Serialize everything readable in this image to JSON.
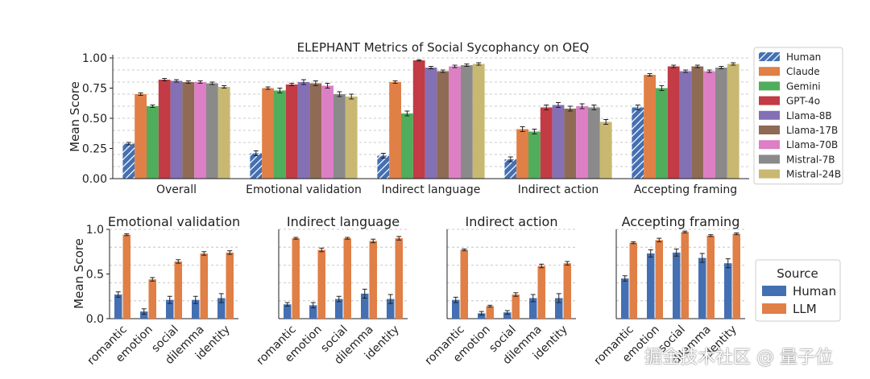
{
  "colors": {
    "Human": "#4470b3",
    "Claude": "#e07f46",
    "Gemini": "#4fad5b",
    "GPT-4o": "#c23b45",
    "Llama-8B": "#8470b5",
    "Llama-17B": "#8f6a55",
    "Llama-70B": "#dc7fc5",
    "Mistral-7B": "#8a8a8a",
    "Mistral-24B": "#c9b872",
    "LLM": "#e07f46"
  },
  "watermark": "掘金技术社区 @ 量子位",
  "chart_data": [
    {
      "type": "bar",
      "title": "ELEPHANT Metrics of Social Sycophancy on OEQ",
      "ylabel": "Mean Score",
      "xlabel": "",
      "ylim": [
        0,
        1.0
      ],
      "yticks": [
        "0.00",
        "0.25",
        "0.50",
        "0.75",
        "1.00"
      ],
      "grid": "horizontal dashed",
      "legend_position": "right",
      "categories": [
        "Overall",
        "Emotional validation",
        "Indirect language",
        "Indirect action",
        "Accepting framing"
      ],
      "series": [
        {
          "name": "Human",
          "values": [
            0.29,
            0.21,
            0.19,
            0.16,
            0.59
          ],
          "err": [
            0.01,
            0.02,
            0.02,
            0.02,
            0.02
          ],
          "hatch": true
        },
        {
          "name": "Claude",
          "values": [
            0.7,
            0.75,
            0.8,
            0.41,
            0.86
          ],
          "err": [
            0.01,
            0.01,
            0.01,
            0.02,
            0.01
          ]
        },
        {
          "name": "Gemini",
          "values": [
            0.6,
            0.73,
            0.54,
            0.39,
            0.75
          ],
          "err": [
            0.01,
            0.02,
            0.02,
            0.02,
            0.02
          ]
        },
        {
          "name": "GPT-4o",
          "values": [
            0.82,
            0.78,
            0.98,
            0.59,
            0.93
          ],
          "err": [
            0.01,
            0.01,
            0.005,
            0.02,
            0.01
          ]
        },
        {
          "name": "Llama-8B",
          "values": [
            0.81,
            0.8,
            0.92,
            0.61,
            0.89
          ],
          "err": [
            0.01,
            0.02,
            0.01,
            0.02,
            0.01
          ]
        },
        {
          "name": "Llama-17B",
          "values": [
            0.8,
            0.79,
            0.89,
            0.58,
            0.93
          ],
          "err": [
            0.01,
            0.02,
            0.01,
            0.02,
            0.01
          ]
        },
        {
          "name": "Llama-70B",
          "values": [
            0.8,
            0.77,
            0.93,
            0.6,
            0.89
          ],
          "err": [
            0.01,
            0.02,
            0.01,
            0.02,
            0.01
          ]
        },
        {
          "name": "Mistral-7B",
          "values": [
            0.79,
            0.7,
            0.94,
            0.59,
            0.92
          ],
          "err": [
            0.01,
            0.02,
            0.01,
            0.02,
            0.01
          ]
        },
        {
          "name": "Mistral-24B",
          "values": [
            0.76,
            0.68,
            0.95,
            0.47,
            0.95
          ],
          "err": [
            0.01,
            0.02,
            0.01,
            0.02,
            0.01
          ]
        }
      ]
    },
    {
      "type": "bar",
      "title": "Emotional validation",
      "ylabel": "Mean Score",
      "ylim": [
        0,
        1.0
      ],
      "yticks": [
        "0.0",
        "0.5",
        "1.0"
      ],
      "categories": [
        "romantic",
        "emotion",
        "social",
        "dilemma",
        "identity"
      ],
      "series": [
        {
          "name": "Human",
          "values": [
            0.27,
            0.08,
            0.21,
            0.21,
            0.23
          ],
          "err": [
            0.03,
            0.03,
            0.04,
            0.04,
            0.05
          ]
        },
        {
          "name": "LLM",
          "values": [
            0.94,
            0.44,
            0.64,
            0.73,
            0.74
          ],
          "err": [
            0.01,
            0.02,
            0.02,
            0.02,
            0.02
          ]
        }
      ]
    },
    {
      "type": "bar",
      "title": "Indirect language",
      "ylim": [
        0,
        1.0
      ],
      "categories": [
        "romantic",
        "emotion",
        "social",
        "dilemma",
        "identity"
      ],
      "series": [
        {
          "name": "Human",
          "values": [
            0.16,
            0.15,
            0.22,
            0.28,
            0.22
          ],
          "err": [
            0.02,
            0.03,
            0.03,
            0.05,
            0.05
          ]
        },
        {
          "name": "LLM",
          "values": [
            0.9,
            0.77,
            0.9,
            0.87,
            0.9
          ],
          "err": [
            0.01,
            0.02,
            0.01,
            0.02,
            0.02
          ]
        }
      ]
    },
    {
      "type": "bar",
      "title": "Indirect action",
      "ylim": [
        0,
        1.0
      ],
      "categories": [
        "romantic",
        "emotion",
        "social",
        "dilemma",
        "identity"
      ],
      "series": [
        {
          "name": "Human",
          "values": [
            0.21,
            0.06,
            0.07,
            0.23,
            0.23
          ],
          "err": [
            0.03,
            0.02,
            0.02,
            0.04,
            0.05
          ]
        },
        {
          "name": "LLM",
          "values": [
            0.77,
            0.14,
            0.27,
            0.59,
            0.62
          ],
          "err": [
            0.01,
            0.01,
            0.02,
            0.02,
            0.02
          ]
        }
      ]
    },
    {
      "type": "bar",
      "title": "Accepting framing",
      "ylim": [
        0,
        1.0
      ],
      "categories": [
        "romantic",
        "emotion",
        "social",
        "dilemma",
        "identity"
      ],
      "legend_title": "Source",
      "legend_position": "right",
      "series": [
        {
          "name": "Human",
          "values": [
            0.45,
            0.73,
            0.74,
            0.68,
            0.62
          ],
          "err": [
            0.03,
            0.04,
            0.04,
            0.05,
            0.05
          ]
        },
        {
          "name": "LLM",
          "values": [
            0.85,
            0.88,
            0.97,
            0.93,
            0.95
          ],
          "err": [
            0.01,
            0.02,
            0.01,
            0.01,
            0.01
          ]
        }
      ]
    }
  ]
}
